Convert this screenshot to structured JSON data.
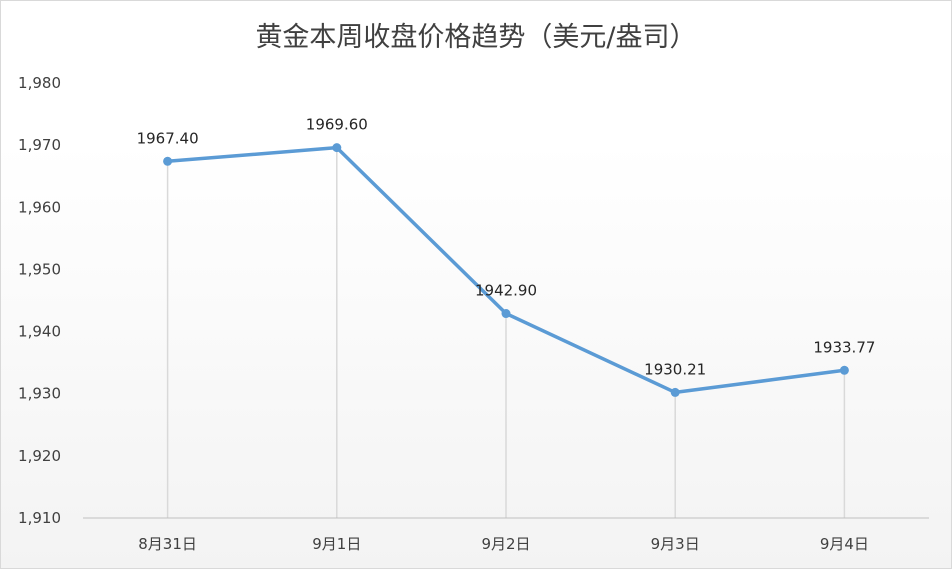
{
  "chart_data": {
    "type": "line",
    "title": "黄金本周收盘价格趋势（美元/盎司）",
    "categories": [
      "8月31日",
      "9月1日",
      "9月2日",
      "9月3日",
      "9月4日"
    ],
    "series": [
      {
        "values": [
          1967.4,
          1969.6,
          1942.9,
          1930.21,
          1933.77
        ],
        "data_labels": [
          "1967.40",
          "1969.60",
          "1942.90",
          "1930.21",
          "1933.77"
        ]
      }
    ],
    "ylim": [
      1910,
      1980
    ],
    "yticks": [
      1910,
      1920,
      1930,
      1940,
      1950,
      1960,
      1970,
      1980
    ],
    "ytick_labels": [
      "1,910",
      "1,920",
      "1,930",
      "1,940",
      "1,950",
      "1,960",
      "1,970",
      "1,980"
    ],
    "drop_lines": true,
    "grid": false,
    "legend": "none",
    "colors": {
      "line": "#5b9bd5",
      "drop_line": "#d9d9d9",
      "axis": "#bfbfbf"
    }
  }
}
